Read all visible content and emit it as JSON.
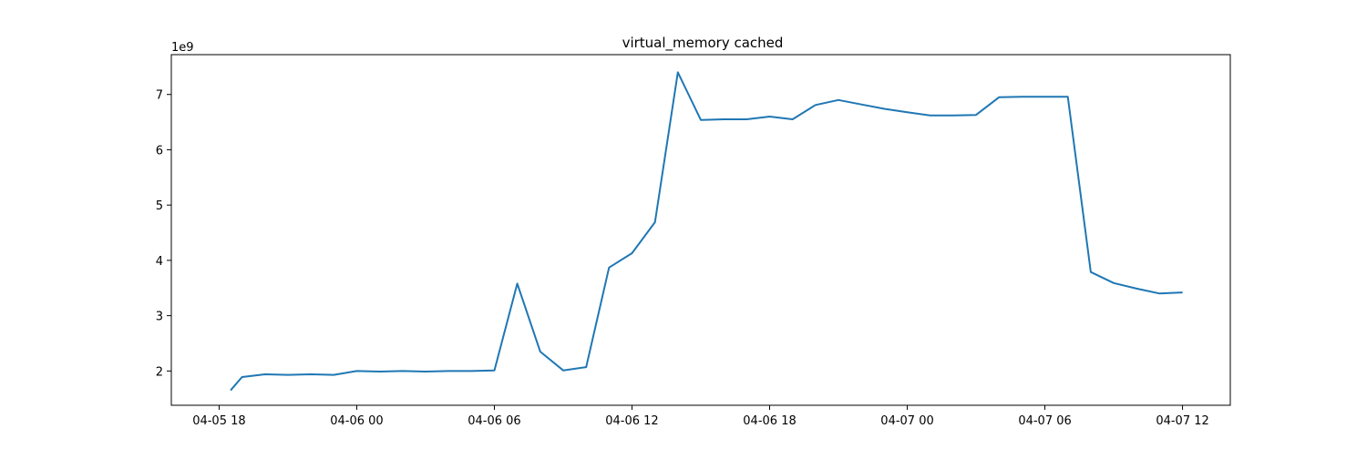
{
  "chart_data": {
    "type": "line",
    "title": "virtual_memory cached",
    "xlabel": "",
    "ylabel": "",
    "y_offset_label": "1e9",
    "y_multiplier": 1000000000,
    "x_tick_labels": [
      "04-05 18",
      "04-06 00",
      "04-06 06",
      "04-06 12",
      "04-06 18",
      "04-07 00",
      "04-07 06",
      "04-07 12"
    ],
    "x_ticks": [
      "2023-04-05T18:00",
      "2023-04-06T00:00",
      "2023-04-06T06:00",
      "2023-04-06T12:00",
      "2023-04-06T18:00",
      "2023-04-07T00:00",
      "2023-04-07T06:00",
      "2023-04-07T12:00"
    ],
    "y_ticks": [
      2,
      3,
      4,
      5,
      6,
      7
    ],
    "xlim": [
      "2023-04-05T15:55",
      "2023-04-07T14:05"
    ],
    "ylim": [
      1.38,
      7.72
    ],
    "grid": false,
    "line_color": "#1f77b4",
    "series": [
      {
        "x": [
          "2023-04-05T18:30",
          "2023-04-05T19:00",
          "2023-04-05T20:00",
          "2023-04-05T21:00",
          "2023-04-05T22:00",
          "2023-04-05T23:00",
          "2023-04-06T00:00",
          "2023-04-06T01:00",
          "2023-04-06T02:00",
          "2023-04-06T03:00",
          "2023-04-06T04:00",
          "2023-04-06T05:00",
          "2023-04-06T06:00",
          "2023-04-06T07:00",
          "2023-04-06T08:00",
          "2023-04-06T09:00",
          "2023-04-06T10:00",
          "2023-04-06T11:00",
          "2023-04-06T12:00",
          "2023-04-06T13:00",
          "2023-04-06T14:00",
          "2023-04-06T15:00",
          "2023-04-06T16:00",
          "2023-04-06T17:00",
          "2023-04-06T18:00",
          "2023-04-06T19:00",
          "2023-04-06T20:00",
          "2023-04-06T21:00",
          "2023-04-06T22:00",
          "2023-04-06T23:00",
          "2023-04-07T00:00",
          "2023-04-07T01:00",
          "2023-04-07T02:00",
          "2023-04-07T03:00",
          "2023-04-07T04:00",
          "2023-04-07T05:00",
          "2023-04-07T06:00",
          "2023-04-07T07:00",
          "2023-04-07T08:00",
          "2023-04-07T09:00",
          "2023-04-07T10:00",
          "2023-04-07T11:00",
          "2023-04-07T12:00"
        ],
        "values": [
          1.65,
          1.89,
          1.94,
          1.93,
          1.94,
          1.93,
          2.0,
          1.99,
          2.0,
          1.99,
          2.0,
          2.0,
          2.01,
          3.58,
          2.35,
          2.01,
          2.07,
          3.87,
          4.13,
          4.69,
          7.4,
          6.54,
          6.55,
          6.55,
          6.6,
          6.55,
          6.81,
          6.9,
          6.82,
          6.74,
          6.68,
          6.62,
          6.62,
          6.63,
          6.95,
          6.96,
          6.96,
          6.96,
          3.79,
          3.59,
          3.49,
          3.4,
          3.42
        ]
      }
    ]
  }
}
